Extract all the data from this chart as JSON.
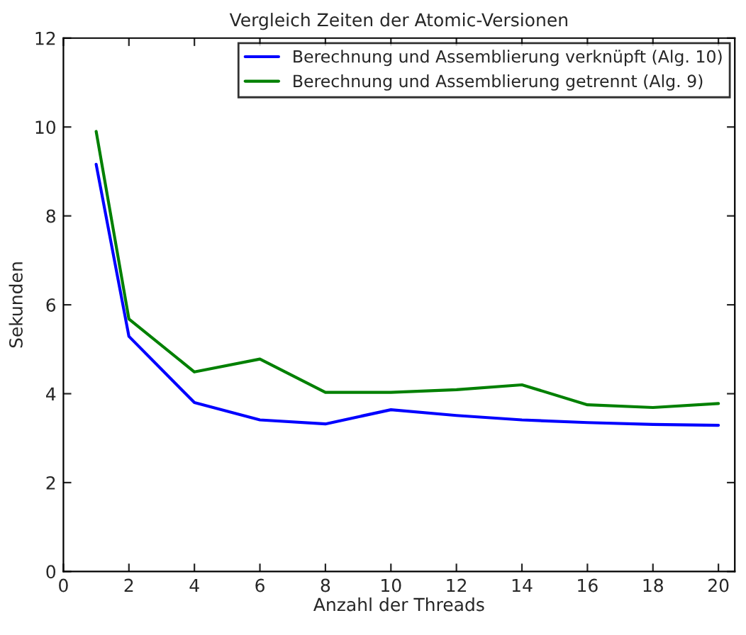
{
  "chart_data": {
    "type": "line",
    "title": "Vergleich Zeiten der Atomic-Versionen",
    "xlabel": "Anzahl der Threads",
    "ylabel": "Sekunden",
    "x": [
      1,
      2,
      4,
      6,
      8,
      10,
      12,
      14,
      16,
      18,
      20
    ],
    "series": [
      {
        "name": "Berechnung und Assemblierung verknüpft (Alg. 10)",
        "color": "#0000ff",
        "values": [
          9.16,
          5.29,
          3.8,
          3.41,
          3.32,
          3.64,
          3.51,
          3.41,
          3.35,
          3.31,
          3.29
        ]
      },
      {
        "name": "Berechnung und Assemblierung getrennt (Alg. 9)",
        "color": "#008000",
        "values": [
          9.9,
          5.68,
          4.49,
          4.78,
          4.03,
          4.03,
          4.09,
          4.2,
          3.75,
          3.69,
          3.78
        ]
      }
    ],
    "xlim": [
      0,
      20.5
    ],
    "xticks": [
      0,
      2,
      4,
      6,
      8,
      10,
      12,
      14,
      16,
      18,
      20
    ],
    "ylim": [
      0,
      12
    ],
    "yticks": [
      0,
      2,
      4,
      6,
      8,
      10,
      12
    ],
    "grid": false,
    "legend": "top right",
    "marker": "none",
    "line_style": "solid"
  }
}
